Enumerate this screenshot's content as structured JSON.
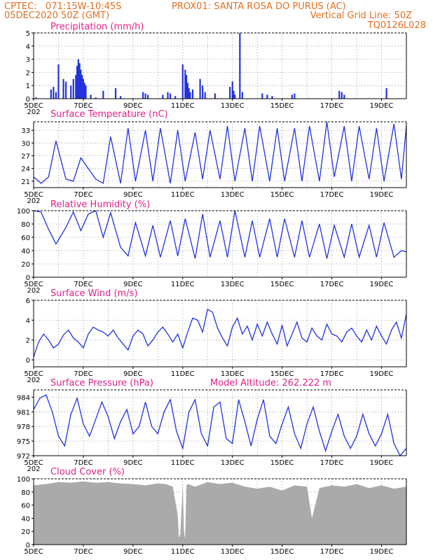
{
  "header": {
    "line1_left": "CPTEC:   071:15W-10:45S",
    "line1_right": "PROX01: SANTA ROSA DO PURUS (AC)",
    "line2_left": "05DEC2020 50Z (GMT)",
    "line2_right": "Vertical Grid Line: 50Z",
    "line3_right": "TQ0126L028",
    "header_color": "#e07020"
  },
  "colors": {
    "title": "#e0208a",
    "series": "#2233dd",
    "cloud": "#aaaaaa",
    "frame": "#000000"
  },
  "x_axis": {
    "labels": [
      "5DEC",
      "7DEC",
      "9DEC",
      "11DEC",
      "13DEC",
      "15DEC",
      "17DEC",
      "19DEC"
    ],
    "label_days": [
      5,
      7,
      9,
      11,
      13,
      15,
      17,
      19
    ],
    "range_days": [
      5,
      20
    ],
    "extra_label": "202"
  },
  "panels": [
    {
      "title": "Precipitation (mm/h)"
    },
    {
      "title": "Surface Temperature (nC)"
    },
    {
      "title": "Relative Humidity (%)"
    },
    {
      "title": "Surface Wind (m/s)"
    },
    {
      "title": "Surface Pressure (hPa)",
      "note": "Model Altitude: 262.222  m"
    },
    {
      "title": "Cloud Cover (%)"
    }
  ],
  "chart_data": [
    {
      "type": "bar",
      "title": "Precipitation (mm/h)",
      "ylim": [
        0,
        5
      ],
      "yticks": [
        0,
        1,
        2,
        3,
        4,
        5
      ],
      "x": [
        5.1,
        5.7,
        5.8,
        5.9,
        6.0,
        6.2,
        6.3,
        6.5,
        6.6,
        6.7,
        6.75,
        6.8,
        6.85,
        6.9,
        6.95,
        7.0,
        7.05,
        7.1,
        7.3,
        7.5,
        7.8,
        8.3,
        8.5,
        9.4,
        9.5,
        9.6,
        10.2,
        10.4,
        10.5,
        10.7,
        11.0,
        11.1,
        11.15,
        11.2,
        11.25,
        11.3,
        11.4,
        11.7,
        11.8,
        11.9,
        12.3,
        12.9,
        13.0,
        13.05,
        13.1,
        13.3,
        13.4,
        14.2,
        14.4,
        14.6,
        15.4,
        15.5,
        17.3,
        17.4,
        17.5,
        19.2
      ],
      "values": [
        0.1,
        0.7,
        0.9,
        0.5,
        2.6,
        1.5,
        1.3,
        1.0,
        1.5,
        1.8,
        2.5,
        3.0,
        2.7,
        2.2,
        1.8,
        1.5,
        1.2,
        1.0,
        0.3,
        0.1,
        0.6,
        0.8,
        0.2,
        0.5,
        0.4,
        0.3,
        0.3,
        0.5,
        0.4,
        0.2,
        2.6,
        2.2,
        1.8,
        1.2,
        0.8,
        0.5,
        0.7,
        1.5,
        1.0,
        0.5,
        0.4,
        0.9,
        1.3,
        0.6,
        0.3,
        5.0,
        0.5,
        0.4,
        0.3,
        0.2,
        0.3,
        0.4,
        0.6,
        0.5,
        0.3,
        0.8
      ]
    },
    {
      "type": "line",
      "title": "Surface Temperature (nC)",
      "ylim": [
        19.5,
        35
      ],
      "yticks": [
        21,
        24,
        27,
        30,
        33
      ],
      "x": [
        5.0,
        5.3,
        5.6,
        5.9,
        6.3,
        6.6,
        6.9,
        7.2,
        7.5,
        7.8,
        8.1,
        8.5,
        8.8,
        9.1,
        9.5,
        9.8,
        10.1,
        10.5,
        10.8,
        11.1,
        11.5,
        11.8,
        12.1,
        12.5,
        12.8,
        13.1,
        13.5,
        13.8,
        14.1,
        14.5,
        14.8,
        15.1,
        15.5,
        15.8,
        16.1,
        16.5,
        16.8,
        17.1,
        17.5,
        17.8,
        18.1,
        18.5,
        18.8,
        19.1,
        19.5,
        19.8,
        20.0
      ],
      "values": [
        22.0,
        20.5,
        22.0,
        30.5,
        21.5,
        21.0,
        26.5,
        24.0,
        21.5,
        20.5,
        31.5,
        20.5,
        33.5,
        21.0,
        33.0,
        21.0,
        33.5,
        20.5,
        33.0,
        21.0,
        32.5,
        21.5,
        33.0,
        21.5,
        34.0,
        21.0,
        33.5,
        21.0,
        34.0,
        21.0,
        33.5,
        21.0,
        33.5,
        21.0,
        34.0,
        21.0,
        35.0,
        22.0,
        34.0,
        21.0,
        34.0,
        21.5,
        33.5,
        21.0,
        34.5,
        21.5,
        34.0
      ]
    },
    {
      "type": "line",
      "title": "Relative Humidity (%)",
      "ylim": [
        0,
        100
      ],
      "yticks": [
        0,
        20,
        40,
        60,
        80,
        100
      ],
      "x": [
        5.0,
        5.3,
        5.6,
        5.9,
        6.3,
        6.6,
        6.9,
        7.2,
        7.5,
        7.8,
        8.1,
        8.5,
        8.8,
        9.1,
        9.5,
        9.8,
        10.1,
        10.5,
        10.8,
        11.1,
        11.5,
        11.8,
        12.1,
        12.5,
        12.8,
        13.1,
        13.5,
        13.8,
        14.1,
        14.5,
        14.8,
        15.1,
        15.5,
        15.8,
        16.1,
        16.5,
        16.8,
        17.1,
        17.5,
        17.8,
        18.1,
        18.5,
        18.8,
        19.1,
        19.5,
        19.8,
        20.0
      ],
      "values": [
        100,
        98,
        72,
        50,
        75,
        98,
        70,
        95,
        100,
        60,
        97,
        45,
        32,
        82,
        32,
        78,
        30,
        85,
        32,
        88,
        28,
        95,
        30,
        85,
        30,
        100,
        30,
        85,
        30,
        88,
        30,
        88,
        30,
        85,
        30,
        80,
        28,
        78,
        30,
        80,
        30,
        78,
        30,
        82,
        30,
        40,
        38
      ]
    },
    {
      "type": "line",
      "title": "Surface Wind (m/s)",
      "ylim": [
        -0.7,
        6
      ],
      "yticks": [
        0,
        2,
        4,
        6
      ],
      "x": [
        5.0,
        5.2,
        5.4,
        5.6,
        5.8,
        6.0,
        6.2,
        6.4,
        6.6,
        6.8,
        7.0,
        7.2,
        7.4,
        7.6,
        7.8,
        8.0,
        8.2,
        8.4,
        8.6,
        8.8,
        9.0,
        9.2,
        9.4,
        9.6,
        9.8,
        10.0,
        10.2,
        10.4,
        10.6,
        10.8,
        11.0,
        11.2,
        11.4,
        11.6,
        11.8,
        12.0,
        12.2,
        12.4,
        12.6,
        12.8,
        13.0,
        13.2,
        13.4,
        13.6,
        13.8,
        14.0,
        14.2,
        14.4,
        14.6,
        14.8,
        15.0,
        15.2,
        15.4,
        15.6,
        15.8,
        16.0,
        16.2,
        16.4,
        16.6,
        16.8,
        17.0,
        17.2,
        17.4,
        17.6,
        17.8,
        18.0,
        18.2,
        18.4,
        18.6,
        18.8,
        19.0,
        19.2,
        19.4,
        19.6,
        19.8,
        20.0
      ],
      "values": [
        0.3,
        1.8,
        2.6,
        2.0,
        1.2,
        1.6,
        2.5,
        3.0,
        2.2,
        1.8,
        1.2,
        2.6,
        3.3,
        3.0,
        2.8,
        2.4,
        3.0,
        2.2,
        1.6,
        1.0,
        2.4,
        3.0,
        2.6,
        1.4,
        2.0,
        2.8,
        3.3,
        2.6,
        1.8,
        2.6,
        1.2,
        2.8,
        4.2,
        4.0,
        2.8,
        5.1,
        4.8,
        3.2,
        2.2,
        1.4,
        3.3,
        4.2,
        2.6,
        3.4,
        2.0,
        3.6,
        2.4,
        3.8,
        2.6,
        1.6,
        3.5,
        1.4,
        2.6,
        3.8,
        2.2,
        1.8,
        3.2,
        2.4,
        2.0,
        3.6,
        2.6,
        2.4,
        1.8,
        2.8,
        3.2,
        2.4,
        1.8,
        3.0,
        2.0,
        3.4,
        2.4,
        1.6,
        3.0,
        3.8,
        2.2,
        4.6
      ]
    },
    {
      "type": "line",
      "title": "Surface Pressure (hPa)",
      "ylim": [
        972,
        985.5
      ],
      "yticks": [
        972,
        975,
        978,
        981,
        984
      ],
      "x": [
        5.0,
        5.25,
        5.5,
        5.75,
        6.0,
        6.25,
        6.5,
        6.75,
        7.0,
        7.25,
        7.5,
        7.75,
        8.0,
        8.25,
        8.5,
        8.75,
        9.0,
        9.25,
        9.5,
        9.75,
        10.0,
        10.25,
        10.5,
        10.75,
        11.0,
        11.25,
        11.5,
        11.75,
        12.0,
        12.25,
        12.5,
        12.75,
        13.0,
        13.25,
        13.5,
        13.75,
        14.0,
        14.25,
        14.5,
        14.75,
        15.0,
        15.25,
        15.5,
        15.75,
        16.0,
        16.25,
        16.5,
        16.75,
        17.0,
        17.25,
        17.5,
        17.75,
        18.0,
        18.25,
        18.5,
        18.75,
        19.0,
        19.25,
        19.5,
        19.75,
        20.0
      ],
      "values": [
        981.5,
        983.8,
        984.5,
        981.0,
        976.0,
        974.0,
        980.5,
        983.8,
        978.5,
        976.0,
        979.5,
        983.0,
        980.0,
        975.5,
        979.0,
        981.5,
        976.5,
        978.0,
        983.0,
        978.0,
        976.5,
        981.0,
        983.5,
        977.0,
        973.5,
        981.0,
        983.5,
        976.5,
        974.0,
        982.0,
        983.0,
        975.5,
        974.5,
        983.5,
        979.0,
        974.0,
        979.5,
        983.5,
        976.0,
        974.5,
        978.5,
        982.0,
        976.5,
        973.5,
        978.5,
        982.0,
        977.0,
        973.0,
        977.0,
        980.5,
        976.0,
        973.5,
        976.0,
        980.5,
        976.5,
        974.0,
        976.5,
        980.5,
        974.5,
        972.0,
        973.5
      ]
    },
    {
      "type": "area",
      "title": "Cloud Cover (%)",
      "ylim": [
        0,
        100
      ],
      "yticks": [
        0,
        20,
        40,
        60,
        80,
        100
      ],
      "x": [
        5.0,
        5.5,
        6.0,
        6.5,
        7.0,
        7.5,
        8.0,
        8.5,
        9.0,
        9.5,
        10.0,
        10.3,
        10.6,
        10.8,
        10.85,
        10.9,
        11.0,
        11.05,
        11.1,
        11.15,
        11.2,
        11.5,
        12.0,
        12.5,
        13.0,
        13.5,
        14.0,
        14.5,
        15.0,
        15.5,
        16.0,
        16.2,
        16.5,
        17.0,
        17.5,
        18.0,
        18.5,
        19.0,
        19.5,
        20.0
      ],
      "values": [
        90,
        92,
        95,
        94,
        96,
        94,
        95,
        93,
        92,
        90,
        93,
        92,
        88,
        45,
        10,
        15,
        92,
        20,
        8,
        90,
        92,
        88,
        95,
        92,
        94,
        88,
        85,
        88,
        82,
        90,
        88,
        40,
        86,
        90,
        88,
        92,
        86,
        90,
        85,
        88
      ]
    }
  ]
}
